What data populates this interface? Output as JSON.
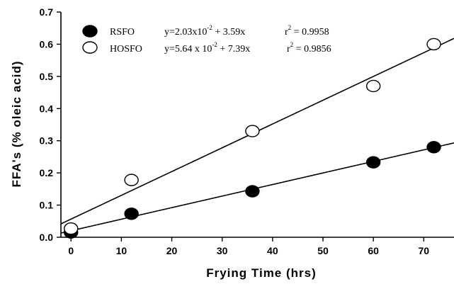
{
  "chart_data": {
    "type": "scatter",
    "title": "",
    "xlabel": "Frying Time (hrs)",
    "ylabel": "FFA's (% oleic acid)",
    "xlim": [
      -2,
      76
    ],
    "ylim": [
      0,
      0.7
    ],
    "xticks": [
      0,
      10,
      20,
      30,
      40,
      50,
      60,
      70
    ],
    "yticks": [
      0.0,
      0.1,
      0.2,
      0.3,
      0.4,
      0.5,
      0.6,
      0.7
    ],
    "ytick_labels": [
      "0.0",
      "0.1",
      "0.2",
      "0.3",
      "0.4",
      "0.5",
      "0.6",
      "0.7"
    ],
    "grid": false,
    "legend_position": "top-left",
    "series": [
      {
        "name": "RSFO",
        "marker": "filled-circle",
        "color": "#000000",
        "x": [
          0,
          12,
          36,
          60,
          72
        ],
        "y": [
          0.015,
          0.073,
          0.143,
          0.233,
          0.28
        ],
        "fit": {
          "intercept": 0.0203,
          "slope": 0.00359
        },
        "equation": {
          "pre": "y=2.03x10",
          "exp": "-2",
          "post": " + 3.59x"
        },
        "r2": " = 0.9958"
      },
      {
        "name": "HOSFO",
        "marker": "open-circle",
        "color": "#000000",
        "x": [
          0,
          12,
          36,
          60,
          72
        ],
        "y": [
          0.027,
          0.178,
          0.33,
          0.47,
          0.6
        ],
        "fit": {
          "intercept": 0.0564,
          "slope": 0.00739
        },
        "equation": {
          "pre": "y=5.64 x 10",
          "exp": "-2",
          "post": " + 7.39x"
        },
        "r2": " = 0.9856"
      }
    ]
  }
}
